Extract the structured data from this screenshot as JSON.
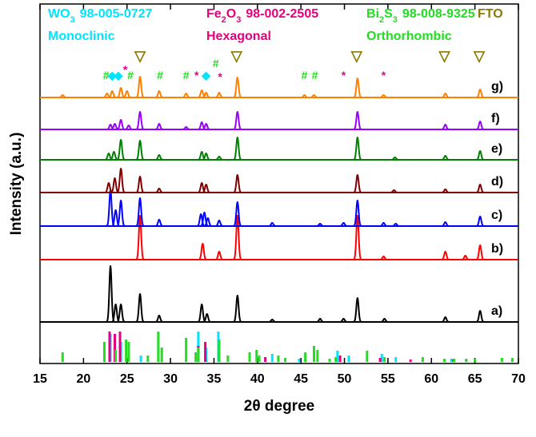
{
  "chart_data": {
    "type": "xrd",
    "xlabel": "2θ degree",
    "ylabel": "Intensity (a.u.)",
    "xlim": [
      15,
      70
    ],
    "xticks": [
      15,
      20,
      25,
      30,
      35,
      40,
      45,
      50,
      55,
      60,
      65,
      70
    ],
    "series": [
      {
        "name": "a)",
        "color": "#000000",
        "x": [
          23.1,
          23.7,
          24.3,
          26.5,
          28.7,
          33.6,
          34.2,
          37.7,
          41.7,
          47.2,
          49.9,
          51.5,
          54.6,
          61.6,
          65.6
        ],
        "values": [
          70,
          22,
          22,
          35,
          8,
          22,
          10,
          33,
          3,
          4,
          4,
          30,
          4,
          6,
          14
        ]
      },
      {
        "name": "b)",
        "color": "#ff0000",
        "x": [
          26.5,
          33.7,
          35.6,
          37.7,
          51.5,
          54.5,
          61.6,
          63.9,
          65.6
        ],
        "values": [
          55,
          20,
          10,
          55,
          55,
          4,
          10,
          5,
          18
        ]
      },
      {
        "name": "c)",
        "color": "#0000ff",
        "x": [
          23.1,
          23.7,
          24.3,
          26.5,
          28.7,
          33.5,
          33.9,
          34.3,
          35.6,
          37.7,
          41.7,
          47.2,
          49.9,
          51.5,
          54.5,
          55.9,
          61.6,
          65.6
        ],
        "values": [
          45,
          20,
          32,
          35,
          8,
          15,
          17,
          10,
          7,
          30,
          4,
          3,
          4,
          32,
          4,
          3,
          5,
          12
        ]
      },
      {
        "name": "d)",
        "color": "#800000",
        "x": [
          22.9,
          23.6,
          24.3,
          26.5,
          28.7,
          33.6,
          34.1,
          37.7,
          51.5,
          55.7,
          61.6,
          65.6
        ],
        "values": [
          12,
          18,
          30,
          20,
          5,
          12,
          10,
          22,
          22,
          3,
          4,
          10
        ]
      },
      {
        "name": "e)",
        "color": "#008000",
        "x": [
          22.9,
          23.5,
          24.3,
          26.5,
          28.7,
          33.6,
          34.1,
          35.6,
          37.7,
          51.5,
          55.8,
          61.6,
          65.6
        ],
        "values": [
          8,
          10,
          25,
          24,
          6,
          10,
          8,
          4,
          28,
          28,
          3,
          5,
          11
        ]
      },
      {
        "name": "f)",
        "color": "#9900ff",
        "x": [
          23.1,
          23.6,
          24.3,
          25.2,
          26.5,
          28.7,
          31.8,
          33.6,
          34.1,
          37.7,
          51.5,
          61.6,
          65.6
        ],
        "values": [
          6,
          7,
          12,
          5,
          22,
          7,
          3,
          9,
          7,
          22,
          22,
          6,
          10
        ]
      },
      {
        "name": "g)",
        "color": "#ff8000",
        "x": [
          17.6,
          22.7,
          23.3,
          24.3,
          25.0,
          26.5,
          28.7,
          31.8,
          33.6,
          34.1,
          35.6,
          37.7,
          45.4,
          46.5,
          51.5,
          54.5,
          61.6,
          65.6
        ],
        "values": [
          3,
          5,
          8,
          12,
          8,
          26,
          8,
          5,
          9,
          6,
          6,
          25,
          3,
          3,
          24,
          3,
          5,
          10
        ]
      }
    ],
    "phases": [
      {
        "formula": "WO",
        "sub": "3",
        "code": "98-005-0727",
        "structure": "Monoclinic",
        "color": "#00e5ff",
        "x": [
          23.1,
          23.6,
          24.3,
          26.6,
          33.2,
          34.1,
          35.5,
          41.7,
          44.8,
          49.2,
          50.5,
          54.3,
          55.9,
          62.3
        ],
        "values": [
          35,
          28,
          25,
          8,
          38,
          18,
          38,
          10,
          4,
          14,
          8,
          10,
          6,
          4
        ]
      },
      {
        "formula": "Fe",
        "sub": "2",
        "formula2": "O",
        "sub2": "3",
        "code": "98-002-2505",
        "structure": "Hexagonal",
        "color": "#e6007e",
        "x": [
          23.0,
          23.6,
          24.2,
          33.2,
          34.0,
          35.6,
          40.9,
          49.5,
          54.1,
          57.6,
          62.5,
          64.0
        ],
        "values": [
          38,
          35,
          38,
          20,
          25,
          15,
          6,
          8,
          5,
          3,
          3,
          3
        ]
      },
      {
        "formula": "Bi",
        "sub": "2",
        "formula2": "S",
        "sub2": "3",
        "code": "98-008-9325",
        "structure": "Orthorhombic",
        "color": "#22dd22",
        "x": [
          17.6,
          22.4,
          23.7,
          24.9,
          25.2,
          27.4,
          28.6,
          29.0,
          31.8,
          32.9,
          33.2,
          35.6,
          36.6,
          39.1,
          39.9,
          40.2,
          42.4,
          43.2,
          45.5,
          46.5,
          46.9,
          48.3,
          49.0,
          52.6,
          54.6,
          59.0,
          61.5,
          62.6,
          64.0,
          65.0,
          68.1,
          69.3
        ],
        "values": [
          12,
          25,
          15,
          28,
          25,
          8,
          38,
          18,
          30,
          12,
          18,
          28,
          8,
          12,
          15,
          8,
          8,
          5,
          12,
          20,
          15,
          4,
          6,
          14,
          6,
          6,
          4,
          4,
          4,
          4,
          5,
          5
        ]
      },
      {
        "formula": "FTO",
        "color": "#8b7a00"
      }
    ],
    "annotations": [
      {
        "text": "#",
        "x": 22.6,
        "color": "#22dd22"
      },
      {
        "text": "◆",
        "x": 23.3,
        "color": "#00e5ff"
      },
      {
        "text": "◆",
        "x": 24.0,
        "color": "#00e5ff"
      },
      {
        "text": "*",
        "x": 24.8,
        "color": "#e6007e"
      },
      {
        "text": "#",
        "x": 25.4,
        "color": "#22dd22"
      },
      {
        "text": "▽",
        "x": 26.5,
        "color": "#8b7a00"
      },
      {
        "text": "#",
        "x": 28.8,
        "color": "#22dd22"
      },
      {
        "text": "#",
        "x": 31.8,
        "color": "#22dd22"
      },
      {
        "text": "*",
        "x": 33.0,
        "color": "#e6007e"
      },
      {
        "text": "◆",
        "x": 34.1,
        "color": "#00e5ff"
      },
      {
        "text": "#",
        "x": 35.2,
        "color": "#22dd22"
      },
      {
        "text": "*",
        "x": 35.7,
        "color": "#e6007e"
      },
      {
        "text": "▽",
        "x": 37.6,
        "color": "#8b7a00"
      },
      {
        "text": "#",
        "x": 45.4,
        "color": "#22dd22"
      },
      {
        "text": "#",
        "x": 46.6,
        "color": "#22dd22"
      },
      {
        "text": "*",
        "x": 49.9,
        "color": "#e6007e"
      },
      {
        "text": "▽",
        "x": 51.4,
        "color": "#8b7a00"
      },
      {
        "text": "*",
        "x": 54.5,
        "color": "#e6007e"
      },
      {
        "text": "▽",
        "x": 61.5,
        "color": "#8b7a00"
      },
      {
        "text": "▽",
        "x": 65.5,
        "color": "#8b7a00"
      }
    ]
  }
}
